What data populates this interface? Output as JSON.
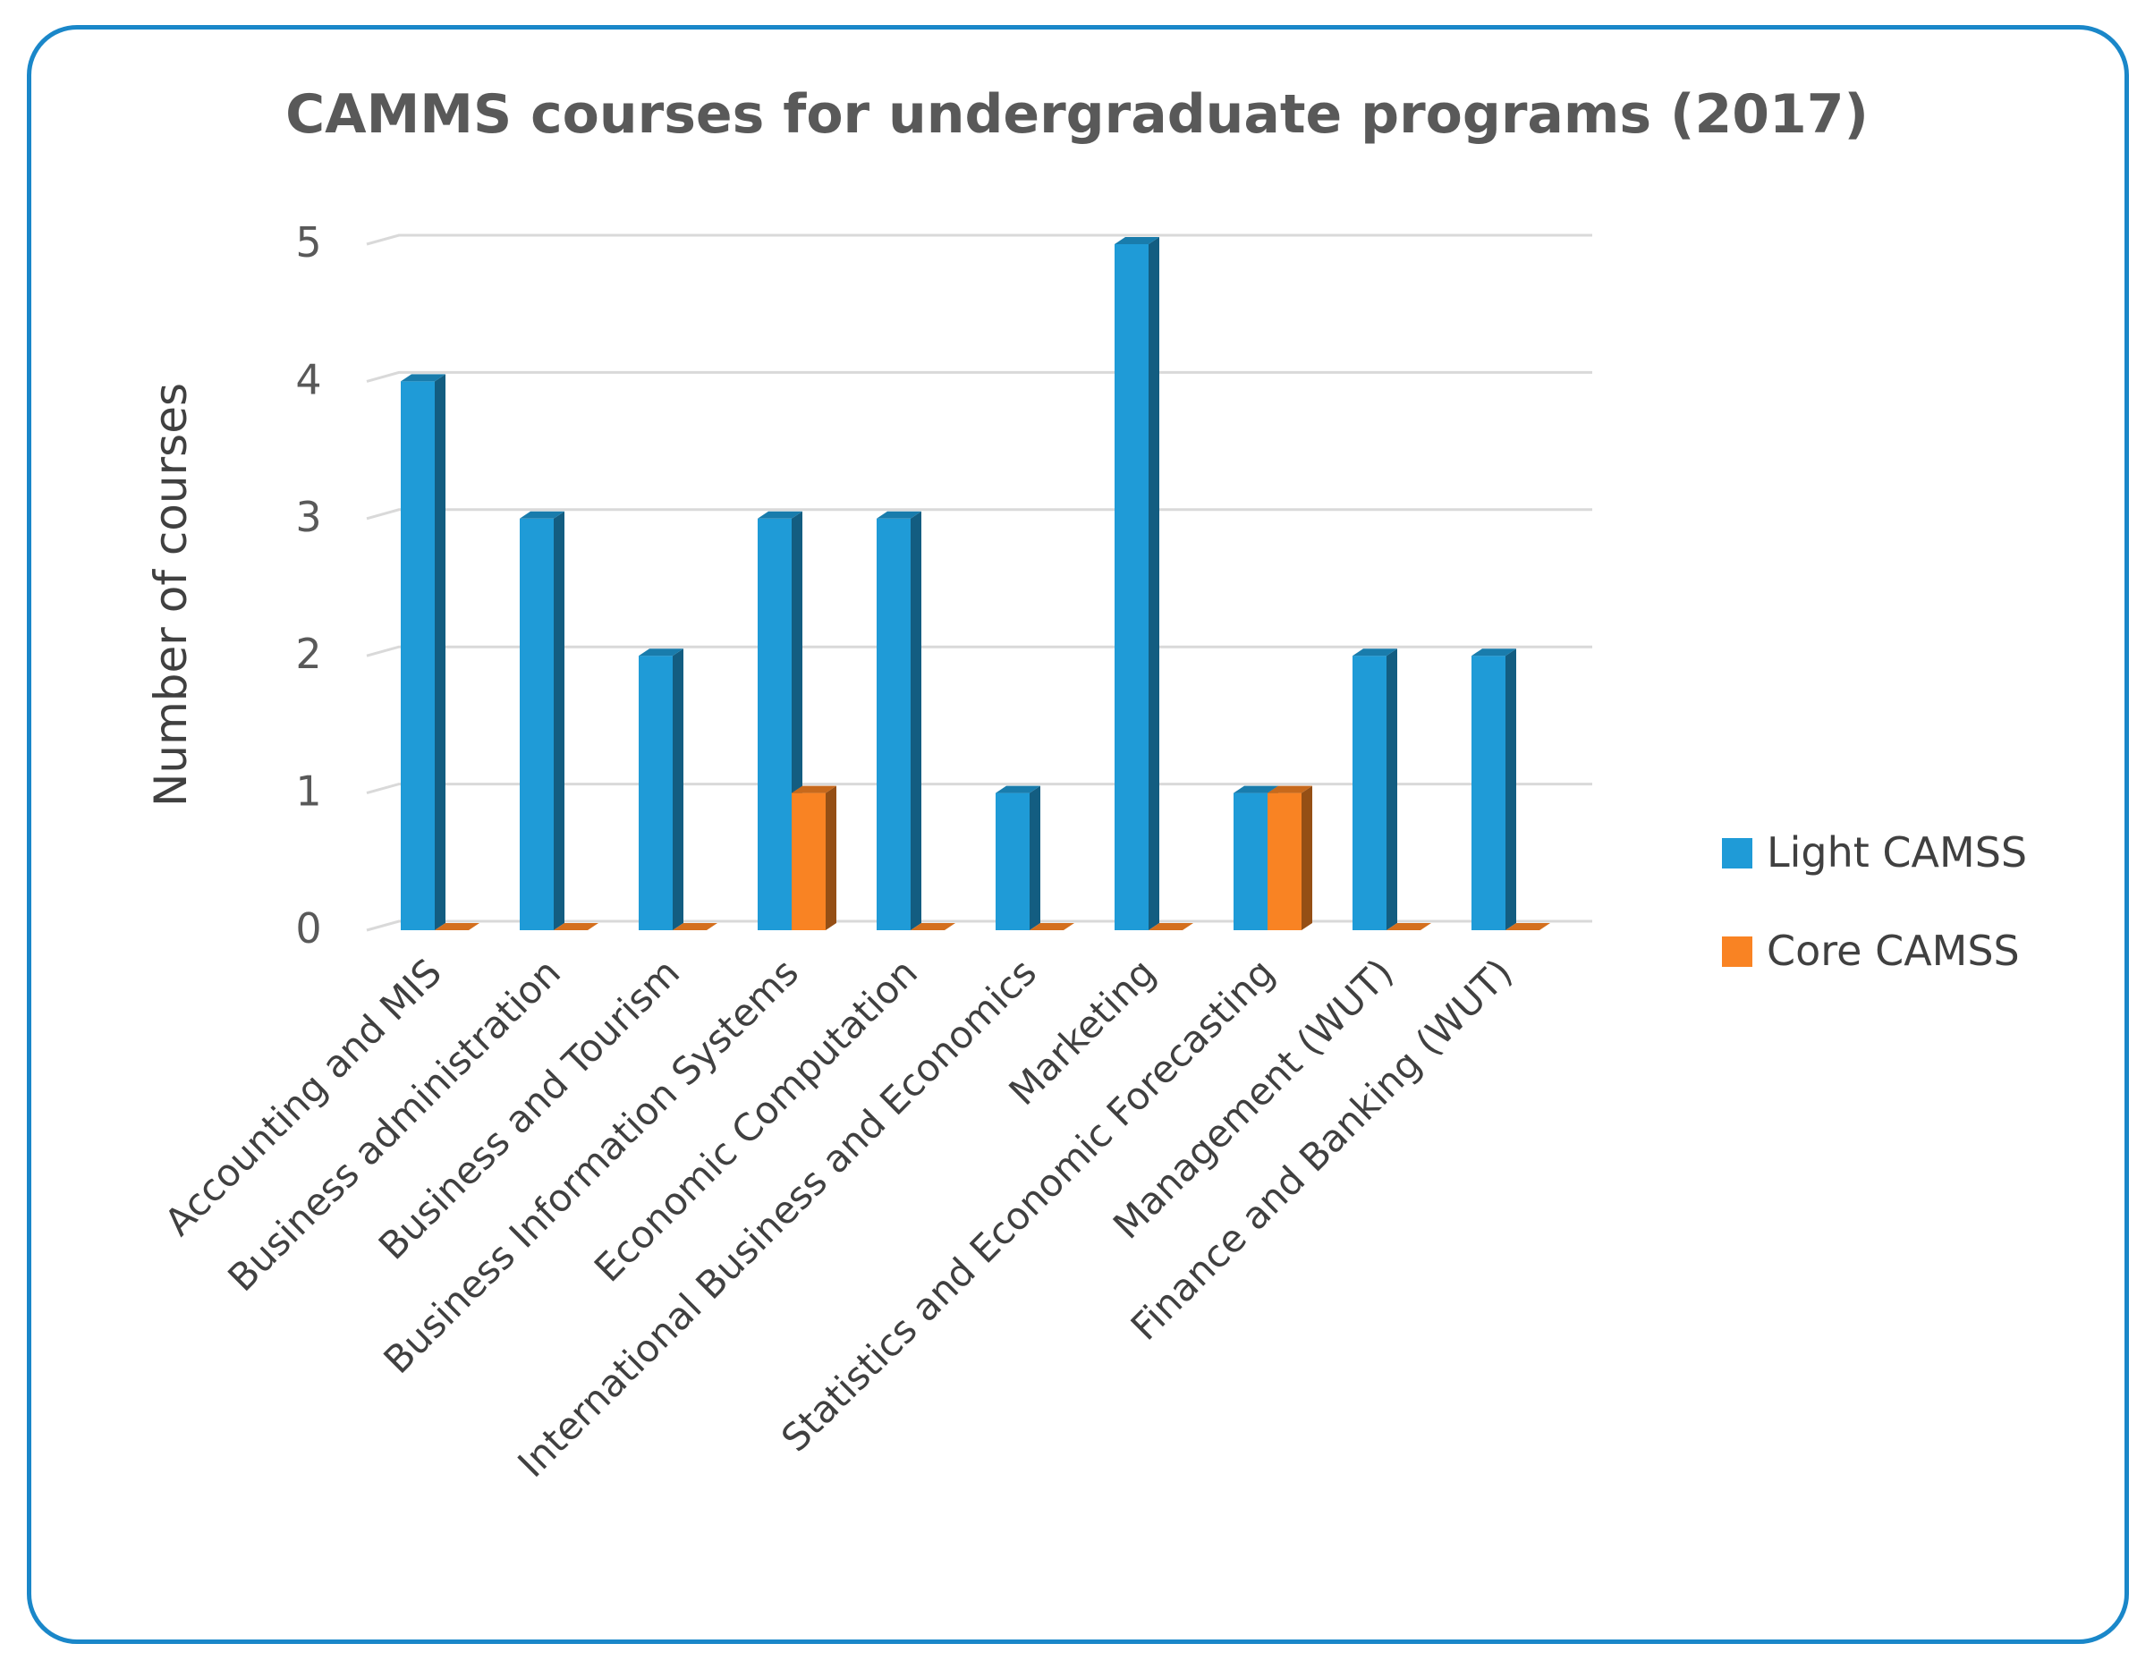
{
  "chart_data": {
    "type": "bar",
    "title": "CAMMS courses for undergraduate programs (2017)",
    "xlabel": "",
    "ylabel": "Number of courses",
    "ylim": [
      0,
      5
    ],
    "yticks": [
      0,
      1,
      2,
      3,
      4,
      5
    ],
    "grid": true,
    "legend_position": "right",
    "categories": [
      "Accounting and MIS",
      "Business administration",
      "Business and Tourism",
      "Business Information Systems",
      "Economic Computation",
      "International Business and Economics",
      "Marketing",
      "Statistics and Economic Forecasting",
      "Management (WUT)",
      "Finance and Banking (WUT)"
    ],
    "series": [
      {
        "name": "Light CAMSS",
        "color": "#1f9bd7",
        "values": [
          4,
          3,
          2,
          3,
          3,
          1,
          5,
          1,
          2,
          2
        ]
      },
      {
        "name": "Core CAMSS",
        "color": "#f98323",
        "values": [
          0,
          0,
          0,
          1,
          0,
          0,
          0,
          1,
          0,
          0
        ]
      }
    ]
  }
}
